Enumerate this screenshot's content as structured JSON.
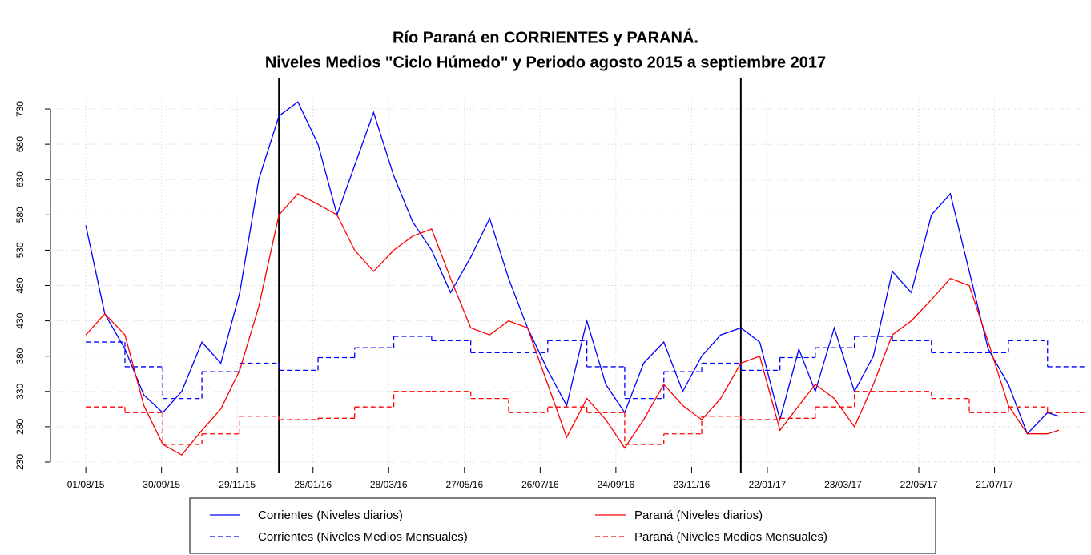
{
  "chart_data": {
    "type": "line",
    "title": "Río Paraná en CORRIENTES y PARANÁ.",
    "subtitle": "Niveles Medios \"Ciclo Húmedo\" y Periodo agosto 2015 a septiembre 2017",
    "xlim": [
      "04/07/15",
      "01/10/17"
    ],
    "xticks": [
      "01/08/15",
      "30/09/15",
      "29/11/15",
      "28/01/16",
      "28/03/16",
      "27/05/16",
      "26/07/16",
      "24/09/16",
      "23/11/16",
      "22/01/17",
      "23/03/17",
      "22/05/17",
      "21/07/17"
    ],
    "ylim": [
      225,
      745
    ],
    "yticks": [
      230,
      280,
      330,
      380,
      430,
      480,
      530,
      580,
      630,
      680,
      730
    ],
    "grid": true,
    "vlines": [
      "01/01/16",
      "01/01/17"
    ],
    "series": [
      {
        "name": "Corrientes (Niveles diarios)",
        "color": "#0000ff",
        "dash": false,
        "step": false,
        "x": [
          "01/08/15",
          "16/08/15",
          "01/09/15",
          "16/09/15",
          "01/10/15",
          "16/10/15",
          "01/11/15",
          "16/11/15",
          "01/12/15",
          "16/12/15",
          "01/01/16",
          "16/01/16",
          "01/02/16",
          "16/02/16",
          "01/03/16",
          "16/03/16",
          "01/04/16",
          "16/04/16",
          "01/05/16",
          "16/05/16",
          "01/06/16",
          "16/06/16",
          "01/07/16",
          "16/07/16",
          "01/08/16",
          "16/08/16",
          "01/09/16",
          "16/09/16",
          "01/10/16",
          "16/10/16",
          "01/11/16",
          "16/11/16",
          "01/12/16",
          "16/12/16",
          "01/01/17",
          "16/01/17",
          "01/02/17",
          "16/02/17",
          "01/03/17",
          "16/03/17",
          "01/04/17",
          "16/04/17",
          "01/05/17",
          "16/05/17",
          "01/06/17",
          "16/06/17",
          "01/07/17",
          "16/07/17",
          "01/08/17",
          "16/08/17",
          "01/09/17",
          "10/09/17"
        ],
        "values": [
          565,
          440,
          390,
          325,
          300,
          330,
          400,
          370,
          470,
          630,
          720,
          740,
          680,
          580,
          650,
          725,
          635,
          570,
          530,
          470,
          520,
          575,
          490,
          420,
          360,
          310,
          430,
          340,
          300,
          370,
          400,
          330,
          380,
          410,
          420,
          400,
          290,
          390,
          330,
          420,
          330,
          380,
          500,
          470,
          580,
          610,
          500,
          390,
          340,
          270,
          300,
          295
        ]
      },
      {
        "name": "Corrientes (Niveles Medios Mensuales)",
        "color": "#0000ff",
        "dash": true,
        "step": true,
        "x": [
          "01/08/15",
          "01/09/15",
          "01/10/15",
          "01/11/15",
          "01/12/15",
          "01/01/16",
          "01/02/16",
          "01/03/16",
          "01/04/16",
          "01/05/16",
          "01/06/16",
          "01/07/16",
          "01/08/16",
          "01/09/16",
          "01/10/16",
          "01/11/16",
          "01/12/16",
          "01/01/17",
          "01/02/17",
          "01/03/17",
          "01/04/17",
          "01/05/17",
          "01/06/17",
          "01/07/17",
          "01/08/17",
          "01/09/17"
        ],
        "values": [
          400,
          365,
          320,
          358,
          370,
          360,
          378,
          392,
          408,
          402,
          385,
          385,
          402,
          365,
          320,
          358,
          370,
          360,
          378,
          392,
          408,
          402,
          385,
          385,
          402,
          365
        ]
      },
      {
        "name": "Paraná (Niveles diarios)",
        "color": "#ff0000",
        "dash": false,
        "step": false,
        "x": [
          "01/08/15",
          "16/08/15",
          "01/09/15",
          "16/09/15",
          "01/10/15",
          "16/10/15",
          "01/11/15",
          "16/11/15",
          "01/12/15",
          "16/12/15",
          "01/01/16",
          "16/01/16",
          "01/02/16",
          "16/02/16",
          "01/03/16",
          "16/03/16",
          "01/04/16",
          "16/04/16",
          "01/05/16",
          "16/05/16",
          "01/06/16",
          "16/06/16",
          "01/07/16",
          "16/07/16",
          "01/08/16",
          "16/08/16",
          "01/09/16",
          "16/09/16",
          "01/10/16",
          "16/10/16",
          "01/11/16",
          "16/11/16",
          "01/12/16",
          "16/12/16",
          "01/01/17",
          "16/01/17",
          "01/02/17",
          "16/02/17",
          "01/03/17",
          "16/03/17",
          "01/04/17",
          "16/04/17",
          "01/05/17",
          "16/05/17",
          "01/06/17",
          "16/06/17",
          "01/07/17",
          "16/07/17",
          "01/08/17",
          "16/08/17",
          "01/09/17",
          "10/09/17"
        ],
        "values": [
          410,
          440,
          410,
          310,
          255,
          240,
          275,
          305,
          360,
          450,
          580,
          610,
          595,
          580,
          530,
          500,
          530,
          550,
          560,
          490,
          420,
          410,
          430,
          420,
          340,
          265,
          320,
          290,
          250,
          290,
          340,
          310,
          290,
          320,
          370,
          380,
          275,
          310,
          340,
          320,
          280,
          340,
          410,
          430,
          460,
          490,
          480,
          400,
          310,
          270,
          270,
          275
        ]
      },
      {
        "name": "Paraná (Niveles Medios Mensuales)",
        "color": "#ff0000",
        "dash": true,
        "step": true,
        "x": [
          "01/08/15",
          "01/09/15",
          "01/10/15",
          "01/11/15",
          "01/12/15",
          "01/01/16",
          "01/02/16",
          "01/03/16",
          "01/04/16",
          "01/05/16",
          "01/06/16",
          "01/07/16",
          "01/08/16",
          "01/09/16",
          "01/10/16",
          "01/11/16",
          "01/12/16",
          "01/01/17",
          "01/02/17",
          "01/03/17",
          "01/04/17",
          "01/05/17",
          "01/06/17",
          "01/07/17",
          "01/08/17",
          "01/09/17"
        ],
        "values": [
          308,
          300,
          255,
          270,
          295,
          290,
          292,
          308,
          330,
          330,
          320,
          300,
          308,
          300,
          255,
          270,
          295,
          290,
          292,
          308,
          330,
          330,
          320,
          300,
          308,
          300
        ]
      }
    ]
  }
}
